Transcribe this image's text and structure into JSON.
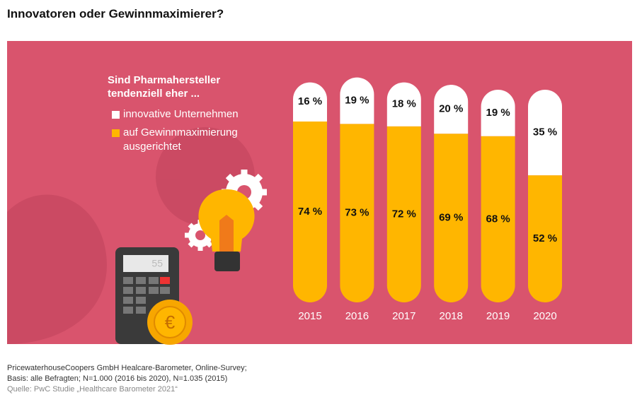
{
  "chart_data": {
    "type": "bar",
    "stacked": true,
    "title": "Innovatoren oder Gewinnmaximierer?",
    "legend_title": [
      "Sind Pharmahersteller",
      "tendenziell eher ..."
    ],
    "categories": [
      "2015",
      "2016",
      "2017",
      "2018",
      "2019",
      "2020"
    ],
    "series": [
      {
        "name": "auf Gewinnmaximierung ausgerichtet",
        "color": "#ffb600",
        "values": [
          74,
          73,
          72,
          69,
          68,
          52
        ],
        "value_labels": [
          "74 %",
          "73 %",
          "72 %",
          "69 %",
          "68 %",
          "52 %"
        ]
      },
      {
        "name": "innovative Unternehmen",
        "color": "#ffffff",
        "values": [
          16,
          19,
          18,
          20,
          19,
          35
        ],
        "value_labels": [
          "16 %",
          "19 %",
          "18 %",
          "20 %",
          "19 %",
          "35 %"
        ]
      }
    ],
    "legend_order": [
      1,
      0
    ],
    "background_color": "#d9546d",
    "footnotes": [
      "PricewaterhouseCoopers GmbH Healcare-Barometer, Online-Survey;",
      "Basis: alle Befragten; N=1.000 (2016 bis 2020), N=1.035 (2015)"
    ],
    "source": "Quelle: PwC Studie „Healthcare Barometer 2021“"
  },
  "illustration": {
    "calculator_display": "55"
  }
}
